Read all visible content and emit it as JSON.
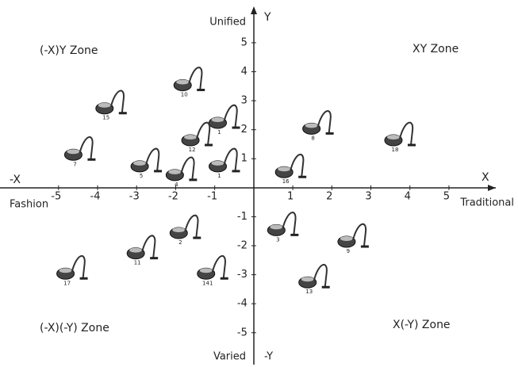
{
  "chart_data": {
    "type": "scatter",
    "y_axis_top": "Unified",
    "y_axis_name": "Y",
    "y_axis_bottom": "Varied",
    "y_axis_neg": "-Y",
    "x_axis_neg": "-X",
    "x_axis_left": "Fashion",
    "x_axis_name": "X",
    "x_axis_right": "Traditional",
    "zones": [
      "(-X)Y Zone",
      "XY Zone",
      "(-X)(-Y) Zone",
      "X(-Y) Zone"
    ],
    "point_labels": [
      "10",
      "15",
      "1",
      "12",
      "7",
      "5",
      "4",
      "1",
      "8",
      "18",
      "16",
      "3",
      "9",
      "13",
      "2",
      "11",
      "141",
      "17"
    ],
    "x": [
      -1.7,
      -3.7,
      -0.8,
      -1.5,
      -4.5,
      -2.8,
      -1.9,
      -0.8,
      1.6,
      3.7,
      0.9,
      0.7,
      2.5,
      1.5,
      -1.8,
      -2.9,
      -1.1,
      -4.7
    ],
    "values": [
      3.7,
      2.9,
      2.4,
      1.8,
      1.3,
      0.9,
      0.6,
      0.9,
      2.2,
      1.8,
      0.7,
      -1.3,
      -1.7,
      -3.1,
      -1.4,
      -2.1,
      -2.8,
      -2.8
    ],
    "color": "#444444",
    "xlim": [
      -6.5,
      6.2
    ],
    "ylim": [
      -6.1,
      6.2
    ],
    "xticks": [
      -5,
      -4,
      -3,
      -2,
      -1,
      1,
      2,
      3,
      4,
      5
    ],
    "yticks": [
      -5,
      -4,
      -3,
      -2,
      -1,
      1,
      2,
      3,
      4,
      5
    ]
  }
}
